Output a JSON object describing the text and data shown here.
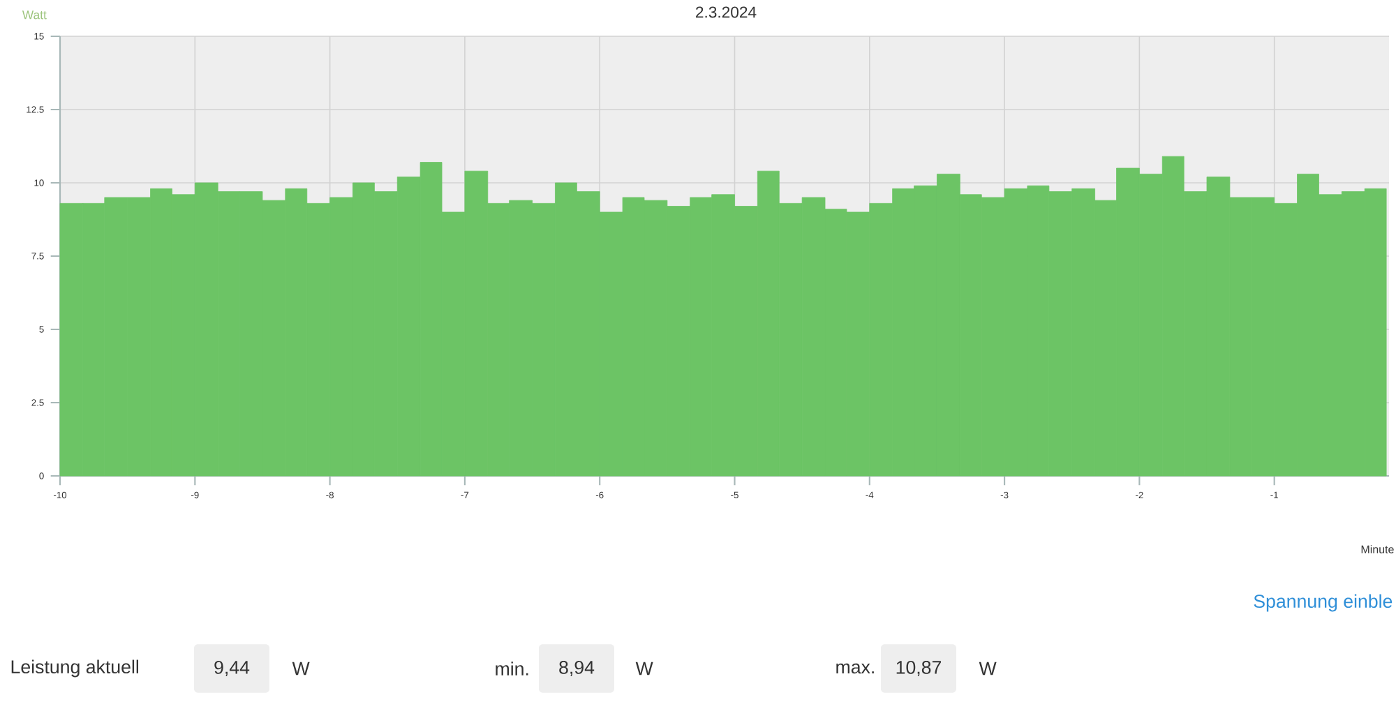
{
  "chart_data": {
    "type": "histogram",
    "title": "2.3.2024",
    "xlabel": "Minute",
    "ylabel": "Watt",
    "bins": [
      -10,
      -9.83,
      -9.67,
      -9.5,
      -9.33,
      -9.17,
      -9,
      -8.83,
      -8.67,
      -8.5,
      -8.33,
      -8.17,
      -8,
      -7.83,
      -7.67,
      -7.5,
      -7.33,
      -7.17,
      -7,
      -6.83,
      -6.67,
      -6.5,
      -6.33,
      -6.17,
      -6,
      -5.83,
      -5.67,
      -5.5,
      -5.33,
      -5.17,
      -5,
      -4.83,
      -4.67,
      -4.5,
      -4.33,
      -4.17,
      -4,
      -3.83,
      -3.67,
      -3.5,
      -3.33,
      -3.17,
      -3,
      -2.83,
      -2.67,
      -2.5,
      -2.33,
      -2.17,
      -2,
      -1.83,
      -1.67,
      -1.5,
      -1.33,
      -1.17,
      -1,
      -0.83,
      -0.67,
      -0.5,
      -0.33,
      -0.17
    ],
    "values": [
      9.3,
      9.3,
      9.5,
      9.5,
      9.8,
      9.6,
      10,
      9.7,
      9.7,
      9.4,
      9.8,
      9.3,
      9.5,
      10,
      9.7,
      10.2,
      10.7,
      9,
      10.4,
      9.3,
      9.4,
      9.3,
      10,
      9.7,
      9,
      9.5,
      9.4,
      9.2,
      9.5,
      9.6,
      9.2,
      10.4,
      9.3,
      9.5,
      9.1,
      9,
      9.3,
      9.8,
      9.9,
      10.3,
      9.6,
      9.5,
      9.8,
      9.9,
      9.7,
      9.8,
      9.4,
      10.5,
      10.3,
      10.9,
      9.7,
      10.2,
      9.5,
      9.5,
      9.3,
      10.3,
      9.6,
      9.7,
      9.8
    ],
    "color": "#6cc465",
    "xlim": [
      -10,
      -0.15
    ],
    "ylim": [
      0,
      15
    ],
    "xticks": [
      -10,
      -9,
      -8,
      -7,
      -6,
      -5,
      -4,
      -3,
      -2,
      -1
    ],
    "yticks": [
      0,
      {
        "value": 2.5,
        "label": "2.5"
      },
      5,
      {
        "value": 7.5,
        "label": "7.5"
      },
      10,
      {
        "value": 12.5,
        "label": "12.5"
      },
      15
    ],
    "grid": true,
    "annotations": [
      "Spannung einble",
      "Leistung aktuell",
      "9,44",
      "W",
      "min.",
      "8,94",
      "W",
      "max.",
      "10,87",
      "W"
    ]
  }
}
